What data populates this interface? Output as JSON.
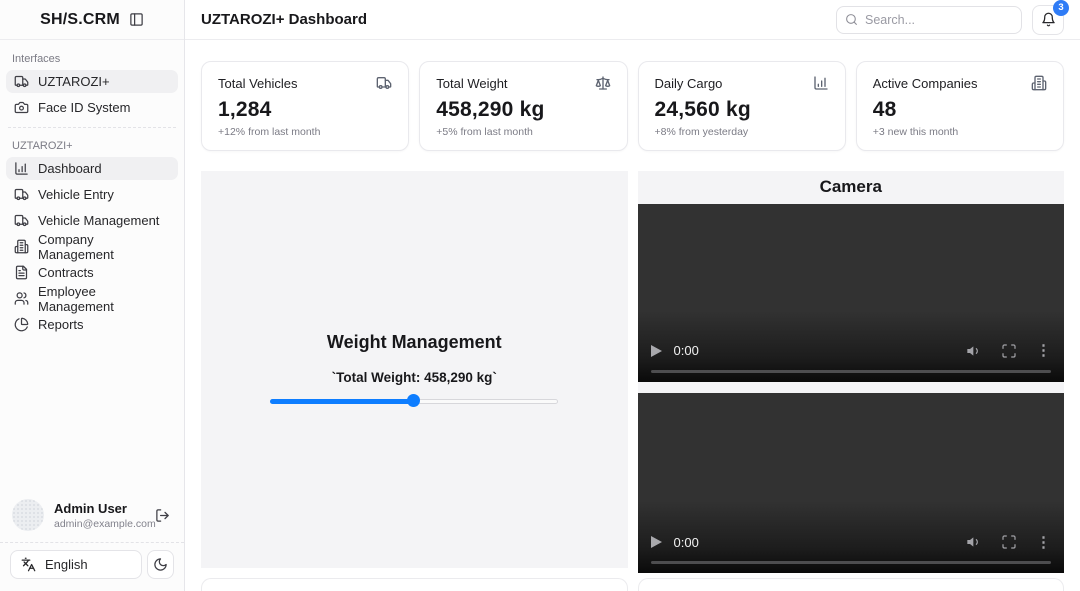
{
  "app": {
    "name": "SH/S.CRM"
  },
  "topbar": {
    "title": "UZTAROZI+ Dashboard",
    "search": {
      "placeholder": "Search...",
      "icon": "search-icon"
    },
    "notifications": {
      "icon": "bell-icon",
      "badge_count": "3"
    }
  },
  "sidebar": {
    "sections": [
      {
        "label": "Interfaces",
        "items": [
          {
            "label": "UZTAROZI+",
            "icon": "truck-icon",
            "active": true
          },
          {
            "label": "Face ID System",
            "icon": "camera-icon",
            "active": false
          }
        ]
      },
      {
        "label": "UZTAROZI+",
        "items": [
          {
            "label": "Dashboard",
            "icon": "chart-column-icon",
            "active": true
          },
          {
            "label": "Vehicle Entry",
            "icon": "truck-icon",
            "active": false
          },
          {
            "label": "Vehicle Management",
            "icon": "truck-icon",
            "active": false
          },
          {
            "label": "Company Management",
            "icon": "building-icon",
            "active": false
          },
          {
            "label": "Contracts",
            "icon": "file-text-icon",
            "active": false
          },
          {
            "label": "Employee Management",
            "icon": "users-icon",
            "active": false
          },
          {
            "label": "Reports",
            "icon": "chart-pie-icon",
            "active": false
          }
        ]
      }
    ],
    "user": {
      "name": "Admin User",
      "email": "admin@example.com",
      "logout_icon": "log-out-icon"
    },
    "footer": {
      "language": "English",
      "language_icon": "languages-icon",
      "theme_icon": "moon-icon"
    }
  },
  "stats": [
    {
      "title": "Total Vehicles",
      "value": "1,284",
      "delta": "+12% from last month",
      "icon": "truck-icon"
    },
    {
      "title": "Total Weight",
      "value": "458,290 kg",
      "delta": "+5% from last month",
      "icon": "scale-icon"
    },
    {
      "title": "Daily Cargo",
      "value": "24,560 kg",
      "delta": "+8% from yesterday",
      "icon": "chart-column-icon"
    },
    {
      "title": "Active Companies",
      "value": "48",
      "delta": "+3 new this month",
      "icon": "building-icon"
    }
  ],
  "weight_panel": {
    "title": "Weight Management",
    "slider_label": "`Total Weight: 458,290 kg`",
    "slider_percent": 50
  },
  "camera_panel": {
    "title": "Camera",
    "videos": [
      {
        "time": "0:00",
        "controls": [
          "play",
          "mute",
          "fullscreen",
          "more-options"
        ]
      },
      {
        "time": "0:00",
        "controls": [
          "play",
          "mute",
          "fullscreen",
          "more-options"
        ]
      }
    ]
  },
  "colors": {
    "accent_blue": "#2f7cf6",
    "slider_blue": "#0d7dff",
    "panel_gray": "#f4f4f6",
    "video_background": "#323232"
  }
}
